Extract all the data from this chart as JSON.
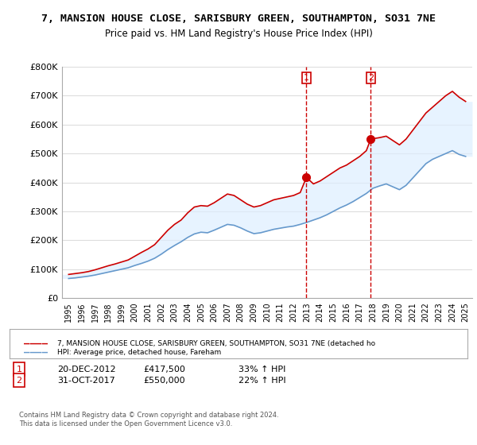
{
  "title1": "7, MANSION HOUSE CLOSE, SARISBURY GREEN, SOUTHAMPTON, SO31 7NE",
  "title2": "Price paid vs. HM Land Registry's House Price Index (HPI)",
  "ylabel": "",
  "xlabel": "",
  "background_color": "#ffffff",
  "plot_bg_color": "#ffffff",
  "grid_color": "#dddddd",
  "red_line_color": "#cc0000",
  "blue_line_color": "#6699cc",
  "shade_color": "#ddeeff",
  "vline_color": "#cc0000",
  "vline_style": "--",
  "ylim": [
    0,
    800000
  ],
  "yticks": [
    0,
    100000,
    200000,
    300000,
    400000,
    500000,
    600000,
    700000,
    800000
  ],
  "ytick_labels": [
    "£0",
    "£100K",
    "£200K",
    "£300K",
    "£400K",
    "£500K",
    "£600K",
    "£700K",
    "£800K"
  ],
  "sale1_year": 2012.97,
  "sale1_price": 417500,
  "sale2_year": 2017.83,
  "sale2_price": 550000,
  "legend_label_red": "7, MANSION HOUSE CLOSE, SARISBURY GREEN, SOUTHAMPTON, SO31 7NE (detached ho",
  "legend_label_blue": "HPI: Average price, detached house, Fareham",
  "table_rows": [
    [
      "1",
      "20-DEC-2012",
      "£417,500",
      "33% ↑ HPI"
    ],
    [
      "2",
      "31-OCT-2017",
      "£550,000",
      "22% ↑ HPI"
    ]
  ],
  "footer": "Contains HM Land Registry data © Crown copyright and database right 2024.\nThis data is licensed under the Open Government Licence v3.0.",
  "red_x": [
    1995.0,
    1995.5,
    1996.0,
    1996.5,
    1997.0,
    1997.5,
    1998.0,
    1998.5,
    1999.0,
    1999.5,
    2000.0,
    2000.5,
    2001.0,
    2001.5,
    2002.0,
    2002.5,
    2003.0,
    2003.5,
    2004.0,
    2004.5,
    2005.0,
    2005.5,
    2006.0,
    2006.5,
    2007.0,
    2007.5,
    2008.0,
    2008.5,
    2009.0,
    2009.5,
    2010.0,
    2010.5,
    2011.0,
    2011.5,
    2012.0,
    2012.5,
    2012.97,
    2013.5,
    2014.0,
    2014.5,
    2015.0,
    2015.5,
    2016.0,
    2016.5,
    2017.0,
    2017.5,
    2017.83,
    2018.5,
    2019.0,
    2019.5,
    2020.0,
    2020.5,
    2021.0,
    2021.5,
    2022.0,
    2022.5,
    2023.0,
    2023.5,
    2024.0,
    2024.5,
    2025.0
  ],
  "red_y": [
    82000,
    85000,
    88000,
    92000,
    98000,
    105000,
    112000,
    118000,
    125000,
    132000,
    145000,
    158000,
    170000,
    185000,
    210000,
    235000,
    255000,
    270000,
    295000,
    315000,
    320000,
    318000,
    330000,
    345000,
    360000,
    355000,
    340000,
    325000,
    315000,
    320000,
    330000,
    340000,
    345000,
    350000,
    355000,
    365000,
    417500,
    395000,
    405000,
    420000,
    435000,
    450000,
    460000,
    475000,
    490000,
    510000,
    550000,
    555000,
    560000,
    545000,
    530000,
    550000,
    580000,
    610000,
    640000,
    660000,
    680000,
    700000,
    715000,
    695000,
    680000
  ],
  "blue_x": [
    1995.0,
    1995.5,
    1996.0,
    1996.5,
    1997.0,
    1997.5,
    1998.0,
    1998.5,
    1999.0,
    1999.5,
    2000.0,
    2000.5,
    2001.0,
    2001.5,
    2002.0,
    2002.5,
    2003.0,
    2003.5,
    2004.0,
    2004.5,
    2005.0,
    2005.5,
    2006.0,
    2006.5,
    2007.0,
    2007.5,
    2008.0,
    2008.5,
    2009.0,
    2009.5,
    2010.0,
    2010.5,
    2011.0,
    2011.5,
    2012.0,
    2012.5,
    2013.0,
    2013.5,
    2014.0,
    2014.5,
    2015.0,
    2015.5,
    2016.0,
    2016.5,
    2017.0,
    2017.5,
    2018.0,
    2018.5,
    2019.0,
    2019.5,
    2020.0,
    2020.5,
    2021.0,
    2021.5,
    2022.0,
    2022.5,
    2023.0,
    2023.5,
    2024.0,
    2024.5,
    2025.0
  ],
  "blue_y": [
    68000,
    70000,
    73000,
    76000,
    80000,
    85000,
    90000,
    95000,
    100000,
    105000,
    113000,
    120000,
    128000,
    138000,
    152000,
    168000,
    182000,
    195000,
    210000,
    222000,
    228000,
    226000,
    235000,
    245000,
    255000,
    252000,
    243000,
    232000,
    223000,
    226000,
    232000,
    238000,
    242000,
    246000,
    249000,
    255000,
    262000,
    270000,
    278000,
    288000,
    300000,
    312000,
    322000,
    334000,
    348000,
    362000,
    380000,
    388000,
    395000,
    385000,
    375000,
    390000,
    415000,
    440000,
    465000,
    480000,
    490000,
    500000,
    510000,
    497000,
    490000
  ],
  "xlim_left": 1994.5,
  "xlim_right": 2025.5,
  "xtick_years": [
    "1995",
    "1996",
    "1997",
    "1998",
    "1999",
    "2000",
    "2001",
    "2002",
    "2003",
    "2004",
    "2005",
    "2006",
    "2007",
    "2008",
    "2009",
    "2010",
    "2011",
    "2012",
    "2013",
    "2014",
    "2015",
    "2016",
    "2017",
    "2018",
    "2019",
    "2020",
    "2021",
    "2022",
    "2023",
    "2024",
    "2025"
  ]
}
